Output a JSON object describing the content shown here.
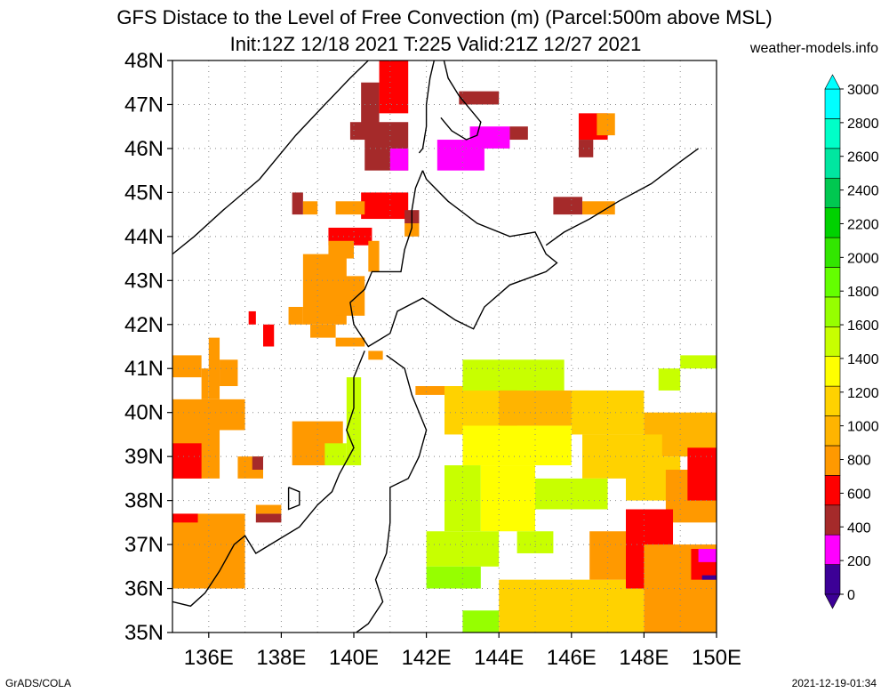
{
  "title_line1": "GFS Distace to the Level of Free Convection (m) (Parcel:500m above MSL)",
  "title_line2": "Init:12Z 12/18 2021 T:225 Valid:21Z 12/27 2021",
  "site": "weather-models.info",
  "footer_left": "GrADS/COLA",
  "footer_right": "2021-12-19-01:34",
  "map": {
    "lon_range": [
      135,
      150
    ],
    "lat_range": [
      35,
      48
    ],
    "lat_labels": [
      "35N",
      "36N",
      "37N",
      "38N",
      "39N",
      "40N",
      "41N",
      "42N",
      "43N",
      "44N",
      "45N",
      "46N",
      "47N",
      "48N"
    ],
    "lon_labels": [
      "136E",
      "138E",
      "140E",
      "142E",
      "144E",
      "146E",
      "148E",
      "150E"
    ],
    "grid": true,
    "coastline_color": "#000000"
  },
  "colorbar": {
    "labels": [
      "0",
      "200",
      "400",
      "600",
      "800",
      "1000",
      "1200",
      "1400",
      "1600",
      "1800",
      "2000",
      "2200",
      "2400",
      "2600",
      "2800",
      "3000"
    ],
    "colors": [
      "#3c0096",
      "#ff00ff",
      "#a52a2a",
      "#ff0000",
      "#ff9900",
      "#ffb400",
      "#ffd200",
      "#ffff00",
      "#c8ff00",
      "#96ff00",
      "#64ff00",
      "#32e600",
      "#00d200",
      "#00c850",
      "#00e6a0",
      "#00ffc8",
      "#00ffff"
    ],
    "top_arrow_color": "#00ffff",
    "bottom_arrow_color": "#3c0096"
  },
  "field": [
    {
      "lon": [
        140.2,
        140.7
      ],
      "lat": [
        46.3,
        47.5
      ],
      "color": "#a52a2a"
    },
    {
      "lon": [
        140.7,
        141.5
      ],
      "lat": [
        46.8,
        48.0
      ],
      "color": "#ff0000"
    },
    {
      "lon": [
        140.3,
        141.5
      ],
      "lat": [
        45.5,
        46.6
      ],
      "color": "#a52a2a"
    },
    {
      "lon": [
        141.0,
        141.5
      ],
      "lat": [
        45.5,
        46.0
      ],
      "color": "#ff00ff"
    },
    {
      "lon": [
        139.9,
        140.4
      ],
      "lat": [
        46.2,
        46.6
      ],
      "color": "#a52a2a"
    },
    {
      "lon": [
        142.3,
        143.6
      ],
      "lat": [
        45.5,
        46.2
      ],
      "color": "#ff00ff"
    },
    {
      "lon": [
        143.2,
        144.3
      ],
      "lat": [
        46.0,
        46.5
      ],
      "color": "#ff00ff"
    },
    {
      "lon": [
        144.3,
        144.8
      ],
      "lat": [
        46.2,
        46.5
      ],
      "color": "#a52a2a"
    },
    {
      "lon": [
        142.9,
        144.0
      ],
      "lat": [
        47.0,
        47.3
      ],
      "color": "#a52a2a"
    },
    {
      "lon": [
        146.2,
        147.0
      ],
      "lat": [
        46.2,
        46.8
      ],
      "color": "#ff0000"
    },
    {
      "lon": [
        146.7,
        147.2
      ],
      "lat": [
        46.3,
        46.8
      ],
      "color": "#ff9900"
    },
    {
      "lon": [
        146.2,
        146.6
      ],
      "lat": [
        45.8,
        46.2
      ],
      "color": "#a52a2a"
    },
    {
      "lon": [
        140.2,
        141.5
      ],
      "lat": [
        44.4,
        45.0
      ],
      "color": "#ff0000"
    },
    {
      "lon": [
        139.5,
        140.3
      ],
      "lat": [
        44.5,
        44.8
      ],
      "color": "#ff9900"
    },
    {
      "lon": [
        141.4,
        141.8
      ],
      "lat": [
        44.3,
        44.6
      ],
      "color": "#a52a2a"
    },
    {
      "lon": [
        141.4,
        141.8
      ],
      "lat": [
        44.0,
        44.3
      ],
      "color": "#ff9900"
    },
    {
      "lon": [
        145.5,
        146.3
      ],
      "lat": [
        44.5,
        44.9
      ],
      "color": "#a52a2a"
    },
    {
      "lon": [
        146.3,
        147.2
      ],
      "lat": [
        44.5,
        44.8
      ],
      "color": "#ff9900"
    },
    {
      "lon": [
        138.3,
        138.6
      ],
      "lat": [
        44.5,
        45.0
      ],
      "color": "#a52a2a"
    },
    {
      "lon": [
        138.6,
        139.0
      ],
      "lat": [
        44.5,
        44.8
      ],
      "color": "#ff9900"
    },
    {
      "lon": [
        139.3,
        140.5
      ],
      "lat": [
        43.8,
        44.2
      ],
      "color": "#ff0000"
    },
    {
      "lon": [
        139.3,
        140.0
      ],
      "lat": [
        43.5,
        43.9
      ],
      "color": "#ff9900"
    },
    {
      "lon": [
        140.4,
        140.7
      ],
      "lat": [
        43.2,
        43.9
      ],
      "color": "#ff9900"
    },
    {
      "lon": [
        138.6,
        139.8
      ],
      "lat": [
        42.0,
        43.6
      ],
      "color": "#ff9900"
    },
    {
      "lon": [
        138.2,
        138.6
      ],
      "lat": [
        42.0,
        42.4
      ],
      "color": "#ff9900"
    },
    {
      "lon": [
        138.8,
        139.5
      ],
      "lat": [
        41.7,
        42.0
      ],
      "color": "#ff9900"
    },
    {
      "lon": [
        139.5,
        140.3
      ],
      "lat": [
        42.2,
        43.1
      ],
      "color": "#ff9900"
    },
    {
      "lon": [
        137.1,
        137.3
      ],
      "lat": [
        42.0,
        42.3
      ],
      "color": "#ff0000"
    },
    {
      "lon": [
        137.5,
        137.8
      ],
      "lat": [
        41.5,
        42.0
      ],
      "color": "#ff0000"
    },
    {
      "lon": [
        139.5,
        140.3
      ],
      "lat": [
        41.5,
        41.7
      ],
      "color": "#ff9900"
    },
    {
      "lon": [
        140.4,
        140.8
      ],
      "lat": [
        41.2,
        41.4
      ],
      "color": "#ff9900"
    },
    {
      "lon": [
        135.0,
        135.8
      ],
      "lat": [
        40.8,
        41.3
      ],
      "color": "#ff9900"
    },
    {
      "lon": [
        135.8,
        136.0
      ],
      "lat": [
        40.3,
        41.0
      ],
      "color": "#ff9900"
    },
    {
      "lon": [
        136.0,
        136.3
      ],
      "lat": [
        40.3,
        41.7
      ],
      "color": "#ff9900"
    },
    {
      "lon": [
        136.3,
        136.8
      ],
      "lat": [
        40.6,
        41.2
      ],
      "color": "#ff9900"
    },
    {
      "lon": [
        135.0,
        137.0
      ],
      "lat": [
        39.6,
        40.3
      ],
      "color": "#ff9900"
    },
    {
      "lon": [
        135.0,
        136.3
      ],
      "lat": [
        38.5,
        39.7
      ],
      "color": "#ff9900"
    },
    {
      "lon": [
        135.0,
        135.8
      ],
      "lat": [
        38.5,
        39.3
      ],
      "color": "#ff0000"
    },
    {
      "lon": [
        136.8,
        137.5
      ],
      "lat": [
        38.5,
        39.0
      ],
      "color": "#ff9900"
    },
    {
      "lon": [
        137.2,
        137.5
      ],
      "lat": [
        38.7,
        39.0
      ],
      "color": "#a52a2a"
    },
    {
      "lon": [
        138.3,
        139.7
      ],
      "lat": [
        38.8,
        39.8
      ],
      "color": "#ff9900"
    },
    {
      "lon": [
        139.8,
        140.2
      ],
      "lat": [
        38.8,
        40.8
      ],
      "color": "#c8ff00"
    },
    {
      "lon": [
        139.2,
        139.8
      ],
      "lat": [
        38.8,
        39.3
      ],
      "color": "#c8ff00"
    },
    {
      "lon": [
        135.0,
        137.0
      ],
      "lat": [
        36.0,
        37.7
      ],
      "color": "#ff9900"
    },
    {
      "lon": [
        135.0,
        135.7
      ],
      "lat": [
        37.5,
        37.7
      ],
      "color": "#ff0000"
    },
    {
      "lon": [
        137.3,
        138.0
      ],
      "lat": [
        37.5,
        37.7
      ],
      "color": "#a52a2a"
    },
    {
      "lon": [
        137.3,
        138.0
      ],
      "lat": [
        37.7,
        37.9
      ],
      "color": "#ff9900"
    },
    {
      "lon": [
        141.7,
        143.0
      ],
      "lat": [
        40.4,
        40.6
      ],
      "color": "#ff9900"
    },
    {
      "lon": [
        142.5,
        144.5
      ],
      "lat": [
        39.5,
        40.6
      ],
      "color": "#ffd200"
    },
    {
      "lon": [
        143.0,
        145.8
      ],
      "lat": [
        40.5,
        41.2
      ],
      "color": "#c8ff00"
    },
    {
      "lon": [
        144.0,
        146.5
      ],
      "lat": [
        39.7,
        40.5
      ],
      "color": "#ffb400"
    },
    {
      "lon": [
        146.0,
        148.0
      ],
      "lat": [
        39.5,
        40.5
      ],
      "color": "#ffd200"
    },
    {
      "lon": [
        148.0,
        150.0
      ],
      "lat": [
        39.0,
        40.0
      ],
      "color": "#ffb400"
    },
    {
      "lon": [
        148.4,
        149.0
      ],
      "lat": [
        40.5,
        41.0
      ],
      "color": "#c8ff00"
    },
    {
      "lon": [
        149.0,
        150.0
      ],
      "lat": [
        41.0,
        41.3
      ],
      "color": "#c8ff00"
    },
    {
      "lon": [
        143.0,
        146.0
      ],
      "lat": [
        38.8,
        39.7
      ],
      "color": "#ffff00"
    },
    {
      "lon": [
        146.3,
        148.5
      ],
      "lat": [
        38.5,
        39.5
      ],
      "color": "#ffd200"
    },
    {
      "lon": [
        142.5,
        143.5
      ],
      "lat": [
        37.3,
        38.8
      ],
      "color": "#c8ff00"
    },
    {
      "lon": [
        143.5,
        145.0
      ],
      "lat": [
        37.3,
        38.8
      ],
      "color": "#ffff00"
    },
    {
      "lon": [
        145.0,
        147.0
      ],
      "lat": [
        37.8,
        38.5
      ],
      "color": "#c8ff00"
    },
    {
      "lon": [
        147.5,
        149.0
      ],
      "lat": [
        38.0,
        39.0
      ],
      "color": "#ffd200"
    },
    {
      "lon": [
        148.6,
        150.0
      ],
      "lat": [
        37.5,
        38.7
      ],
      "color": "#ff9900"
    },
    {
      "lon": [
        149.2,
        150.0
      ],
      "lat": [
        38.0,
        39.2
      ],
      "color": "#ff0000"
    },
    {
      "lon": [
        142.0,
        144.0
      ],
      "lat": [
        36.5,
        37.3
      ],
      "color": "#c8ff00"
    },
    {
      "lon": [
        142.0,
        143.5
      ],
      "lat": [
        36.0,
        36.5
      ],
      "color": "#96ff00"
    },
    {
      "lon": [
        144.5,
        145.5
      ],
      "lat": [
        36.8,
        37.3
      ],
      "color": "#c8ff00"
    },
    {
      "lon": [
        144.0,
        148.0
      ],
      "lat": [
        35.0,
        36.2
      ],
      "color": "#ffd200"
    },
    {
      "lon": [
        143.0,
        144.0
      ],
      "lat": [
        35.0,
        35.5
      ],
      "color": "#96ff00"
    },
    {
      "lon": [
        146.5,
        148.5
      ],
      "lat": [
        36.2,
        37.3
      ],
      "color": "#ff9900"
    },
    {
      "lon": [
        147.5,
        148.8
      ],
      "lat": [
        36.0,
        37.8
      ],
      "color": "#ff0000"
    },
    {
      "lon": [
        148.0,
        150.0
      ],
      "lat": [
        35.0,
        37.0
      ],
      "color": "#ff9900"
    },
    {
      "lon": [
        149.3,
        150.0
      ],
      "lat": [
        36.2,
        36.9
      ],
      "color": "#ff0000"
    },
    {
      "lon": [
        149.5,
        150.0
      ],
      "lat": [
        36.6,
        36.9
      ],
      "color": "#ff00ff"
    },
    {
      "lon": [
        149.6,
        150.0
      ],
      "lat": [
        36.2,
        36.3
      ],
      "color": "#3c0096"
    }
  ]
}
